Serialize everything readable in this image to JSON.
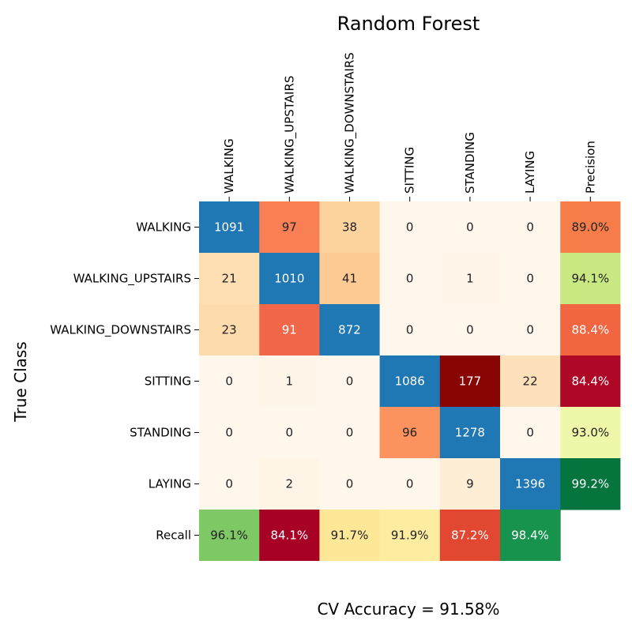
{
  "chart_data": {
    "type": "heatmap",
    "title": "Random Forest",
    "ylabel": "True Class",
    "footer": "CV Accuracy = 91.58%",
    "row_labels": [
      "WALKING",
      "WALKING_UPSTAIRS",
      "WALKING_DOWNSTAIRS",
      "SITTING",
      "STANDING",
      "LAYING",
      "Recall"
    ],
    "col_labels": [
      "WALKING",
      "WALKING_UPSTAIRS",
      "WALKING_DOWNSTAIRS",
      "SITTING",
      "STANDING",
      "LAYING",
      "Precision"
    ],
    "matrix": [
      [
        1091,
        97,
        38,
        0,
        0,
        0
      ],
      [
        21,
        1010,
        41,
        0,
        1,
        0
      ],
      [
        23,
        91,
        872,
        0,
        0,
        0
      ],
      [
        0,
        1,
        0,
        1086,
        177,
        22
      ],
      [
        0,
        0,
        0,
        96,
        1278,
        0
      ],
      [
        0,
        2,
        0,
        0,
        9,
        1396
      ]
    ],
    "precision": [
      "89.0%",
      "94.1%",
      "88.4%",
      "84.4%",
      "93.0%",
      "99.2%"
    ],
    "recall": [
      "96.1%",
      "84.1%",
      "91.7%",
      "91.9%",
      "87.2%",
      "98.4%"
    ],
    "colors": {
      "diagonal": "#1f77b4",
      "off_diagonal_scale": "OrRd",
      "metric_scale": "RdYlGn"
    }
  }
}
